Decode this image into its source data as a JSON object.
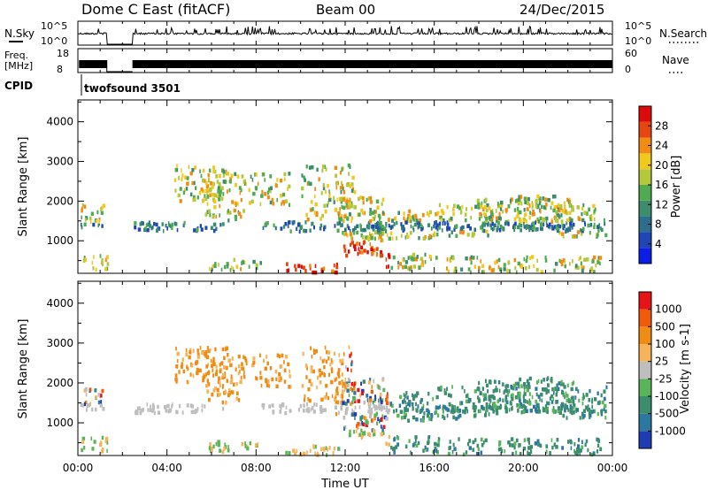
{
  "header": {
    "station": "Dome C East (fitACF)",
    "beam": "Beam 00",
    "date": "24/Dec/2015"
  },
  "strips": {
    "nsky_label": "N.Sky",
    "nsky_ticks": [
      "10^5",
      "10^0"
    ],
    "nsearch_label": "N.Search",
    "nsearch_ticks": [
      "10^5",
      "10^0"
    ],
    "freq_label_1": "Freq.",
    "freq_label_2": "[MHz]",
    "freq_ticks": [
      "18",
      "8"
    ],
    "nave_label": "Nave",
    "nave_ticks": [
      "60",
      "0"
    ],
    "cpid_label": "CPID",
    "cpid_value": "twofsound 3501"
  },
  "chart_data": [
    {
      "type": "heatmap",
      "name": "power-panel",
      "xlabel": "",
      "ylabel": "Slant Range [km]",
      "xlim_hours": [
        0,
        24
      ],
      "ylim_km": [
        180,
        4550
      ],
      "yticks": [
        "1000",
        "2000",
        "3000",
        "4000"
      ],
      "colorbar": {
        "label": "Power [dB]",
        "ticks": [
          "28",
          "24",
          "20",
          "16",
          "12",
          "8",
          "4"
        ],
        "range": [
          0,
          32
        ],
        "colors": [
          "#0a1ee6",
          "#1e46b4",
          "#2d6e8c",
          "#3c8c6e",
          "#50aa50",
          "#b4c83c",
          "#f0c81e",
          "#f08c14",
          "#e6460f",
          "#dc0a0a"
        ]
      },
      "gaps_hours": [
        [
          1.3,
          2.45
        ]
      ]
    },
    {
      "type": "heatmap",
      "name": "velocity-panel",
      "xlabel": "Time UT",
      "ylabel": "Slant Range [km]",
      "xlim_hours": [
        0,
        24
      ],
      "ylim_km": [
        180,
        4550
      ],
      "xticks": [
        "00:00",
        "04:00",
        "08:00",
        "12:00",
        "16:00",
        "20:00",
        "00:00"
      ],
      "yticks": [
        "1000",
        "2000",
        "3000",
        "4000"
      ],
      "colorbar": {
        "label": "Velocity [m s-1]",
        "ticks": [
          "1000",
          "500",
          "100",
          "25",
          "-25",
          "-100",
          "-500",
          "-1000"
        ],
        "colors": [
          "#1e3cb4",
          "#2d78a0",
          "#3c8c6e",
          "#5ab45a",
          "#bebebe",
          "#f5b45a",
          "#f08c14",
          "#f05a0a",
          "#e61414"
        ]
      },
      "gaps_hours": [
        [
          1.3,
          2.45
        ]
      ]
    }
  ]
}
